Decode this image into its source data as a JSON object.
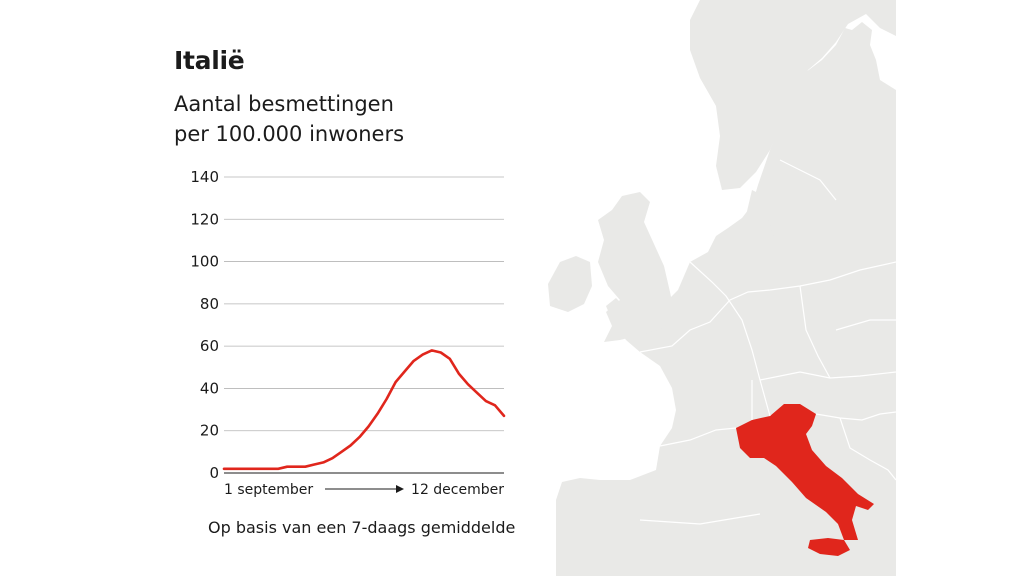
{
  "title": "Italië",
  "subtitle_line1": "Aantal besmettingen",
  "subtitle_line2": "per 100.000 inwoners",
  "footnote": "Op basis van een 7-daags gemiddelde",
  "colors": {
    "line": "#e0261c",
    "highlight_country": "#e0261c",
    "land": "#e9e9e7",
    "borders": "#ffffff",
    "sea": "#ffffff",
    "grid": "#b5b5b5",
    "text": "#1b1b1b"
  },
  "map": {
    "highlighted_country": "Italië"
  },
  "chart_data": {
    "type": "line",
    "title": "Italië",
    "subtitle": "Aantal besmettingen per 100.000 inwoners",
    "ylim": [
      0,
      140
    ],
    "yticks": [
      0,
      20,
      40,
      60,
      80,
      100,
      120,
      140
    ],
    "grid": true,
    "x_start_label": "1 september",
    "x_end_label": "12 december",
    "xlabel": "",
    "ylabel": "",
    "series": [
      {
        "values": [
          2,
          2,
          2,
          2,
          2,
          2,
          2,
          3,
          3,
          3,
          4,
          5,
          7,
          10,
          13,
          17,
          22,
          28,
          35,
          43,
          48,
          53,
          56,
          58,
          57,
          54,
          47,
          42,
          38,
          34,
          32,
          27
        ]
      }
    ]
  }
}
